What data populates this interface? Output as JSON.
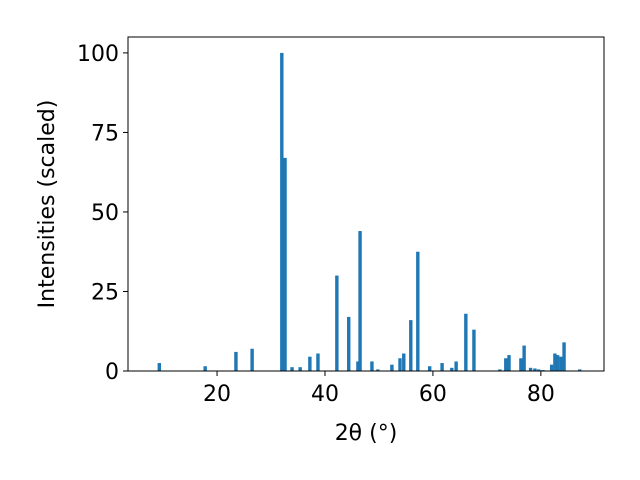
{
  "chart_data": {
    "type": "bar",
    "x_label": "2θ (°)",
    "y_label": "Intensities (scaled)",
    "x": [
      9.3,
      17.8,
      23.5,
      26.5,
      32.0,
      32.6,
      33.9,
      35.4,
      37.2,
      38.7,
      42.2,
      44.4,
      46.1,
      46.5,
      48.7,
      49.8,
      52.4,
      53.9,
      54.6,
      55.9,
      57.2,
      59.4,
      61.7,
      63.5,
      64.3,
      66.1,
      67.6,
      72.4,
      73.5,
      74.1,
      76.3,
      76.9,
      78.1,
      78.9,
      79.6,
      80.4,
      82.0,
      82.6,
      83.1,
      83.7,
      84.3,
      87.2
    ],
    "values": [
      2.5,
      1.5,
      6,
      7,
      100,
      67,
      1.2,
      1.2,
      4.5,
      5.5,
      30,
      17,
      3,
      44,
      3,
      0.5,
      2,
      4,
      5.5,
      16,
      37.5,
      1.5,
      2.5,
      1,
      3,
      18,
      13,
      0.5,
      4,
      5,
      4,
      8,
      1,
      0.8,
      0.5,
      0.3,
      2,
      5.5,
      5,
      4.5,
      9,
      0.5
    ],
    "color": "#1f77b4",
    "xlim": [
      3.5,
      91.7
    ],
    "xticks": [
      20,
      40,
      60,
      80
    ],
    "ylim": [
      0,
      105
    ],
    "yticks": [
      0,
      25,
      50,
      75,
      100
    ]
  }
}
